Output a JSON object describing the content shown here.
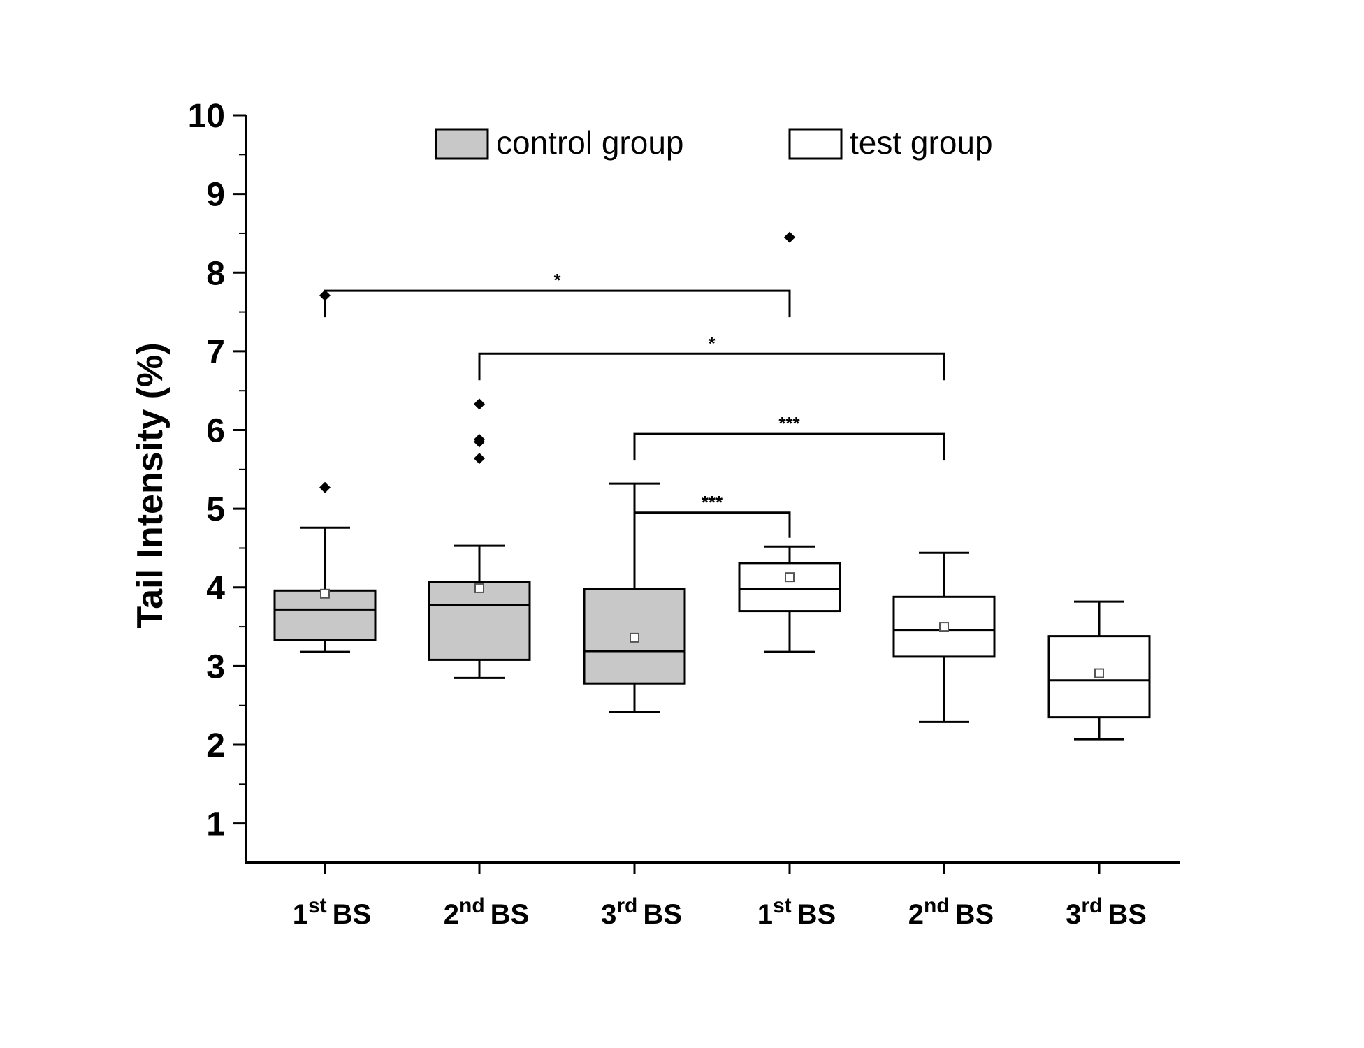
{
  "chart_data": {
    "type": "box",
    "title": "",
    "ylabel": "Tail Intensity (%)",
    "xlabel": "",
    "ylim": [
      0.5,
      10
    ],
    "yticks": [
      1,
      2,
      3,
      4,
      5,
      6,
      7,
      8,
      9,
      10
    ],
    "legend": {
      "position": "top",
      "entries": [
        {
          "label": "control group",
          "fill": "#c8c8c8"
        },
        {
          "label": "test group",
          "fill": "#ffffff"
        }
      ]
    },
    "categories": [
      {
        "num": "1",
        "sup": "st",
        "rest": "BS"
      },
      {
        "num": "2",
        "sup": "nd",
        "rest": "BS"
      },
      {
        "num": "3",
        "sup": "rd",
        "rest": "BS"
      },
      {
        "num": "1",
        "sup": "st",
        "rest": "BS"
      },
      {
        "num": "2",
        "sup": "nd",
        "rest": "BS"
      },
      {
        "num": "3",
        "sup": "rd",
        "rest": "BS"
      }
    ],
    "boxes": [
      {
        "group": "control group",
        "whisker_low": 3.18,
        "q1": 3.33,
        "median": 3.72,
        "q3": 3.96,
        "whisker_high": 4.76,
        "mean": 3.92,
        "outliers": [
          5.27,
          7.71
        ]
      },
      {
        "group": "control group",
        "whisker_low": 2.85,
        "q1": 3.08,
        "median": 3.78,
        "q3": 4.07,
        "whisker_high": 4.53,
        "mean": 3.99,
        "outliers": [
          5.64,
          5.85,
          5.88,
          6.33
        ]
      },
      {
        "group": "control group",
        "whisker_low": 2.42,
        "q1": 2.78,
        "median": 3.19,
        "q3": 3.98,
        "whisker_high": 5.32,
        "mean": 3.36,
        "outliers": []
      },
      {
        "group": "test group",
        "whisker_low": 3.18,
        "q1": 3.7,
        "median": 3.98,
        "q3": 4.31,
        "whisker_high": 4.52,
        "mean": 4.13,
        "outliers": [
          8.45
        ]
      },
      {
        "group": "test group",
        "whisker_low": 2.29,
        "q1": 3.12,
        "median": 3.46,
        "q3": 3.88,
        "whisker_high": 4.44,
        "mean": 3.5,
        "outliers": []
      },
      {
        "group": "test group",
        "whisker_low": 2.07,
        "q1": 2.35,
        "median": 2.82,
        "q3": 3.38,
        "whisker_high": 3.82,
        "mean": 2.91,
        "outliers": []
      }
    ],
    "significance": [
      {
        "from": 1,
        "to": 4,
        "level": 7.77,
        "label": "*"
      },
      {
        "from": 2,
        "to": 5,
        "level": 6.97,
        "label": "*"
      },
      {
        "from": 3,
        "to": 5,
        "level": 5.95,
        "label": "***"
      },
      {
        "from": 3,
        "to": 4,
        "level": 4.95,
        "label": "***"
      }
    ]
  }
}
